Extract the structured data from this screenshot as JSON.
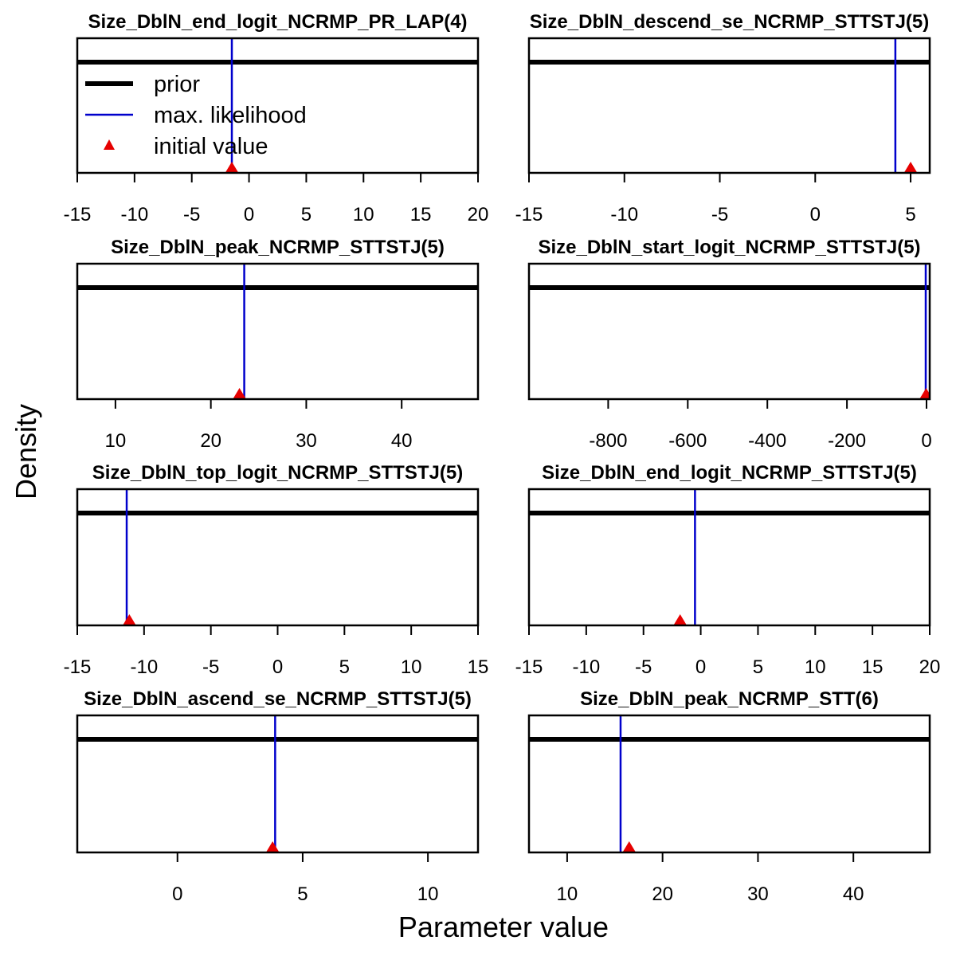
{
  "figure": {
    "ylabel": "Density",
    "xlabel": "Parameter value"
  },
  "legend": {
    "position": "top-left of first panel",
    "entries": [
      {
        "label": "prior",
        "style": "thick-line",
        "color": "#000000"
      },
      {
        "label": "max. likelihood",
        "style": "thin-line",
        "color": "#0000CC"
      },
      {
        "label": "initial value",
        "style": "triangle",
        "color": "#E60000"
      }
    ]
  },
  "colors": {
    "prior": "#000000",
    "mle": "#0000CC",
    "initial": "#E60000"
  },
  "chart_data": [
    {
      "type": "line",
      "title": "Size_DblN_end_logit_NCRMP_PR_LAP(4)",
      "xlim": [
        -15,
        20
      ],
      "ticks": [
        -15,
        -10,
        -5,
        0,
        5,
        10,
        15,
        20
      ],
      "tick_labels": [
        "-15",
        "-10",
        "-5",
        "0",
        "5",
        "10",
        "15",
        "20"
      ],
      "prior": "flat",
      "mle": -1.5,
      "initial": -1.5
    },
    {
      "type": "line",
      "title": "Size_DblN_descend_se_NCRMP_STTSTJ(5)",
      "xlim": [
        -15,
        6
      ],
      "ticks": [
        -15,
        -10,
        -5,
        0,
        5
      ],
      "tick_labels": [
        "-15",
        "-10",
        "-5",
        "0",
        "5"
      ],
      "prior": "flat",
      "mle": 4.2,
      "initial": 5
    },
    {
      "type": "line",
      "title": "Size_DblN_peak_NCRMP_STTSTJ(5)",
      "xlim": [
        6,
        48
      ],
      "ticks": [
        10,
        20,
        30,
        40
      ],
      "tick_labels": [
        "10",
        "20",
        "30",
        "40"
      ],
      "prior": "flat",
      "mle": 23.5,
      "initial": 23
    },
    {
      "type": "line",
      "title": "Size_DblN_start_logit_NCRMP_STTSTJ(5)",
      "xlim": [
        -999,
        8
      ],
      "ticks": [
        -800,
        -600,
        -400,
        -200,
        0
      ],
      "tick_labels": [
        "-800",
        "-600",
        "-400",
        "-200",
        "0"
      ],
      "prior": "flat",
      "mle": -2,
      "initial": -1
    },
    {
      "type": "line",
      "title": "Size_DblN_top_logit_NCRMP_STTSTJ(5)",
      "xlim": [
        -15,
        15
      ],
      "ticks": [
        -15,
        -10,
        -5,
        0,
        5,
        10,
        15
      ],
      "tick_labels": [
        "-15",
        "-10",
        "-5",
        "0",
        "5",
        "10",
        "15"
      ],
      "prior": "flat",
      "mle": -11.3,
      "initial": -11.1
    },
    {
      "type": "line",
      "title": "Size_DblN_end_logit_NCRMP_STTSTJ(5)",
      "xlim": [
        -15,
        20
      ],
      "ticks": [
        -15,
        -10,
        -5,
        0,
        5,
        10,
        15,
        20
      ],
      "tick_labels": [
        "-15",
        "-10",
        "-5",
        "0",
        "5",
        "10",
        "15",
        "20"
      ],
      "prior": "flat",
      "mle": -0.5,
      "initial": -1.8
    },
    {
      "type": "line",
      "title": "Size_DblN_ascend_se_NCRMP_STTSTJ(5)",
      "xlim": [
        -4,
        12
      ],
      "ticks": [
        0,
        5,
        10
      ],
      "tick_labels": [
        "0",
        "5",
        "10"
      ],
      "prior": "flat",
      "mle": 3.9,
      "initial": 3.8
    },
    {
      "type": "line",
      "title": "Size_DblN_peak_NCRMP_STT(6)",
      "xlim": [
        6,
        48
      ],
      "ticks": [
        10,
        20,
        30,
        40
      ],
      "tick_labels": [
        "10",
        "20",
        "30",
        "40"
      ],
      "prior": "flat",
      "mle": 15.6,
      "initial": 16.5
    }
  ]
}
